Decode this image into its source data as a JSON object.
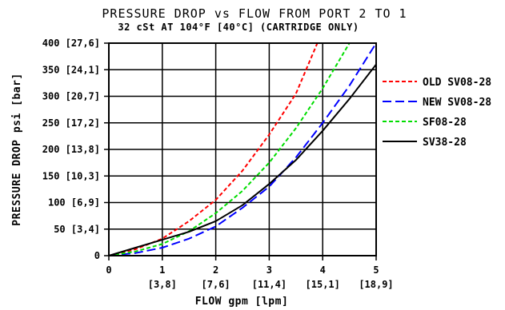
{
  "chart_data": {
    "type": "line",
    "title": "PRESSURE DROP vs FLOW FROM PORT 2 TO 1",
    "subtitle": "32 cSt AT 104°F [40°C] (CARTRIDGE ONLY)",
    "xlabel": "FLOW gpm [lpm]",
    "ylabel": "PRESSURE DROP psi [bar]",
    "xlim": [
      0,
      5
    ],
    "ylim": [
      0,
      400
    ],
    "x_ticks": [
      {
        "value": 0,
        "label": "0",
        "sub": ""
      },
      {
        "value": 1,
        "label": "1",
        "sub": "[3,8]"
      },
      {
        "value": 2,
        "label": "2",
        "sub": "[7,6]"
      },
      {
        "value": 3,
        "label": "3",
        "sub": "[11,4]"
      },
      {
        "value": 4,
        "label": "4",
        "sub": "[15,1]"
      },
      {
        "value": 5,
        "label": "5",
        "sub": "[18,9]"
      }
    ],
    "y_ticks": [
      {
        "value": 0,
        "label": "0"
      },
      {
        "value": 50,
        "label": "50 [3,4]"
      },
      {
        "value": 100,
        "label": "100 [6,9]"
      },
      {
        "value": 150,
        "label": "150 [10,3]"
      },
      {
        "value": 200,
        "label": "200 [13,8]"
      },
      {
        "value": 250,
        "label": "250 [17,2]"
      },
      {
        "value": 300,
        "label": "300 [20,7]"
      },
      {
        "value": 350,
        "label": "350 [24,1]"
      },
      {
        "value": 400,
        "label": "400 [27,6]"
      }
    ],
    "grid": true,
    "legend_position": "right",
    "series": [
      {
        "name": "OLD SV08-28",
        "color": "#ff0000",
        "dash": "short-dash",
        "x": [
          0,
          0.5,
          1,
          1.5,
          2,
          2.5,
          3,
          3.5,
          3.9
        ],
        "y": [
          0,
          12,
          32,
          65,
          105,
          160,
          228,
          305,
          400
        ]
      },
      {
        "name": "NEW SV08-28",
        "color": "#0000ff",
        "dash": "long-dash",
        "x": [
          0,
          0.5,
          1,
          1.5,
          2,
          2.5,
          3,
          3.5,
          4,
          4.5,
          5
        ],
        "y": [
          0,
          5,
          15,
          32,
          55,
          90,
          130,
          185,
          250,
          320,
          400
        ]
      },
      {
        "name": "SF08-28",
        "color": "#00dd00",
        "dash": "short-dash",
        "x": [
          0,
          0.5,
          1,
          1.5,
          2,
          2.5,
          3,
          3.5,
          4,
          4.5
        ],
        "y": [
          0,
          8,
          22,
          46,
          80,
          122,
          175,
          240,
          315,
          400
        ]
      },
      {
        "name": "SV38-28",
        "color": "#000000",
        "dash": "solid",
        "x": [
          0,
          0.5,
          1,
          1.5,
          2,
          2.5,
          3,
          3.5,
          4,
          4.5,
          5
        ],
        "y": [
          0,
          15,
          30,
          45,
          65,
          95,
          135,
          180,
          235,
          295,
          360
        ]
      }
    ]
  }
}
